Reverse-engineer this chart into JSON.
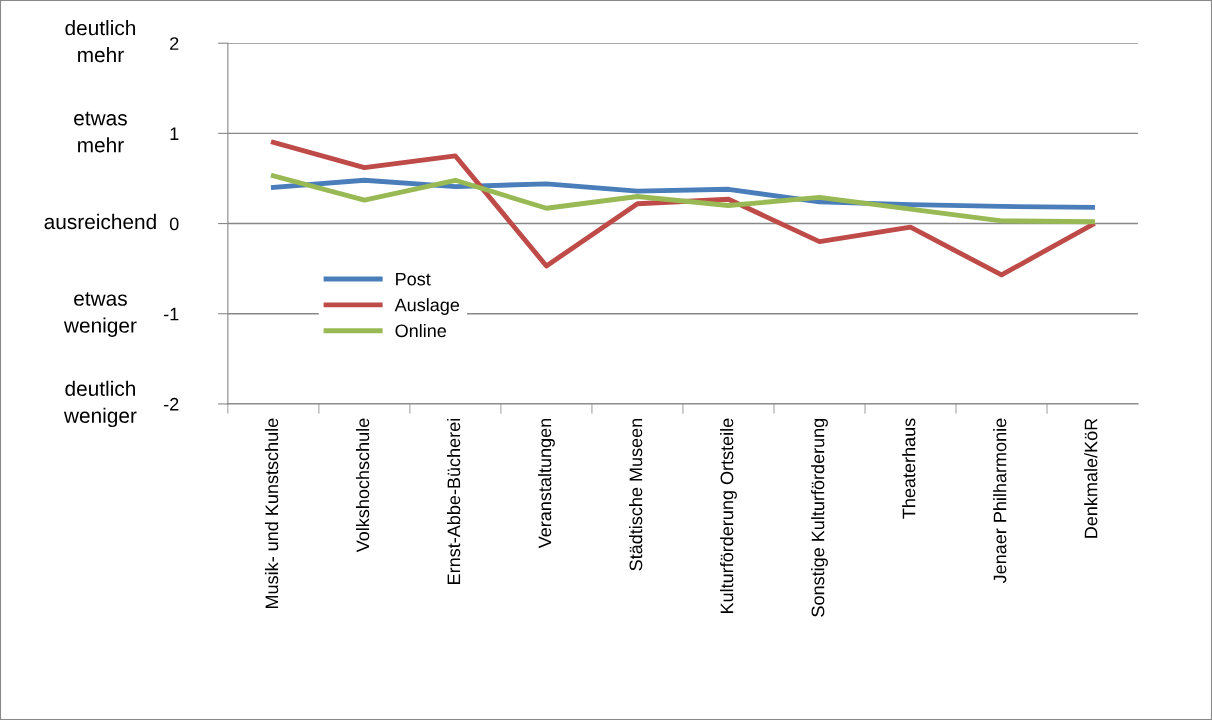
{
  "chart_data": {
    "type": "line",
    "categories": [
      "Musik- und Kunstschule",
      "Volkshochschule",
      "Ernst-Abbe-Bücherei",
      "Veranstaltungen",
      "Städtische Museen",
      "Kulturförderung Ortsteile",
      "Sonstige Kulturförderung",
      "Theaterhaus",
      "Jenaer Philharmonie",
      "Denkmale/KöR"
    ],
    "series": [
      {
        "name": "Post",
        "color": "#4a7ebb",
        "values": [
          0.4,
          0.48,
          0.41,
          0.44,
          0.36,
          0.38,
          0.24,
          0.21,
          0.19,
          0.18
        ]
      },
      {
        "name": "Auslage",
        "color": "#be4b48",
        "values": [
          0.9,
          0.62,
          0.75,
          -0.47,
          0.22,
          0.27,
          -0.2,
          -0.04,
          -0.57,
          -0.01
        ]
      },
      {
        "name": "Online",
        "color": "#98b954",
        "values": [
          0.53,
          0.26,
          0.48,
          0.17,
          0.3,
          0.2,
          0.29,
          0.16,
          0.03,
          0.02
        ]
      }
    ],
    "ylim": [
      -2,
      2
    ],
    "yticks": [
      -2,
      -1,
      0,
      1,
      2
    ],
    "grid": "y",
    "legend": "bottom left",
    "marker": "none",
    "line_style": "solid",
    "annotations": [
      "deutlich\nmehr",
      "etwas\nmehr",
      "ausreichend",
      "etwas\nweniger",
      "deutlich\nweniger"
    ]
  }
}
